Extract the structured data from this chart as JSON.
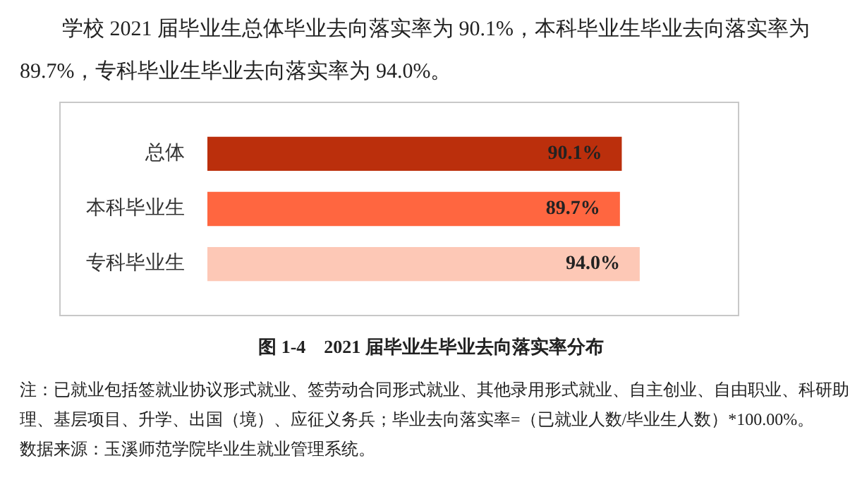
{
  "chart_data": {
    "type": "bar",
    "orientation": "horizontal",
    "title": "图 1-4　2021 届毕业生毕业去向落实率分布",
    "categories": [
      "总体",
      "本科毕业生",
      "专科毕业生"
    ],
    "values": [
      90.1,
      89.7,
      94.0
    ],
    "colors": [
      "#bb2f0c",
      "#ff6640",
      "#fdc8b6"
    ],
    "value_labels": [
      "90.1%",
      "89.7%",
      "94.0%"
    ],
    "legend": false,
    "annotations": [
      "学校 2021 届毕业生总体毕业去向落实率为 90.1%，本科毕业生毕业去向落实率为 89.7%，专科毕业生毕业去向落实率为 94.0%。",
      "注：已就业包括签就业协议形式就业、签劳动合同形式就业、其他录用形式就业、自主创业、自由职业、科研助理、基层项目、升学、出国（境）、应征义务兵；毕业去向落实率=（已就业人数/毕业生人数）*100.00%。",
      "数据来源：玉溪师范学院毕业生就业管理系统。"
    ]
  }
}
